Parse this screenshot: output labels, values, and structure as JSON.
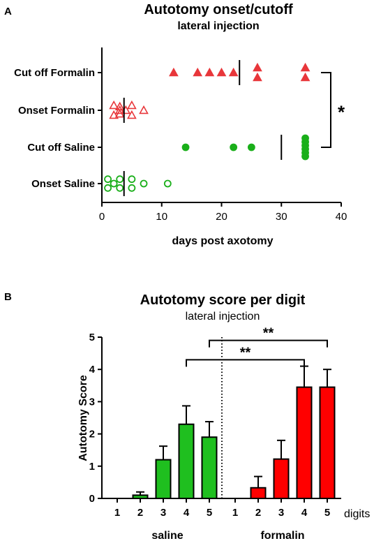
{
  "colors": {
    "red": "#e8363a",
    "green": "#1aaf1a",
    "red_bar": "#ff0000",
    "green_bar": "#1fbf1f",
    "axis": "#000000"
  },
  "chart_data": [
    {
      "type": "scatter",
      "panel_label": "A",
      "title": "Autotomy onset/cutoff",
      "subtitle": "lateral injection",
      "xlabel": "days post axotomy",
      "xlim": [
        0,
        40
      ],
      "xticks": [
        "0",
        "10",
        "20",
        "30",
        "40"
      ],
      "categories": [
        "Cut off Formalin",
        "Onset Formalin",
        "Cut off Saline",
        "Onset Saline"
      ],
      "series": [
        {
          "category": "Cut off Formalin",
          "marker": "filled-triangle",
          "color": "red",
          "values": [
            12,
            16,
            18,
            20,
            22,
            26,
            26,
            34,
            34
          ],
          "median": 23
        },
        {
          "category": "Onset Formalin",
          "marker": "open-triangle",
          "color": "red",
          "values": [
            2,
            2,
            3,
            3,
            3,
            4,
            5,
            5,
            7
          ],
          "median": 3.7
        },
        {
          "category": "Cut off Saline",
          "marker": "filled-circle",
          "color": "green",
          "values": [
            14,
            22,
            25,
            34,
            34,
            34,
            34,
            34,
            34
          ],
          "median": 30
        },
        {
          "category": "Onset Saline",
          "marker": "open-circle",
          "color": "green",
          "values": [
            1,
            1,
            2,
            3,
            3,
            5,
            5,
            7,
            11
          ],
          "median": 3.7
        }
      ],
      "significance": {
        "between": [
          "Cut off Formalin",
          "Cut off Saline"
        ],
        "label": "*"
      }
    },
    {
      "type": "bar",
      "panel_label": "B",
      "title": "Autotomy score per digit",
      "subtitle": "lateral injection",
      "ylabel": "Autotomy Score",
      "xlabel": "digits",
      "ylim": [
        0,
        5
      ],
      "yticks": [
        "0",
        "1",
        "2",
        "3",
        "4",
        "5"
      ],
      "groups": [
        {
          "name": "saline",
          "color": "green_bar",
          "categories": [
            "1",
            "2",
            "3",
            "4",
            "5"
          ],
          "values": [
            0,
            0.1,
            1.2,
            2.3,
            1.9
          ],
          "errors": [
            0,
            0.1,
            0.42,
            0.57,
            0.48
          ]
        },
        {
          "name": "formalin",
          "color": "red_bar",
          "categories": [
            "1",
            "2",
            "3",
            "4",
            "5"
          ],
          "values": [
            0,
            0.33,
            1.22,
            3.45,
            3.45
          ],
          "errors": [
            0,
            0.35,
            0.58,
            0.65,
            0.55
          ]
        }
      ],
      "significance": [
        {
          "from": "saline 4",
          "to": "formalin 4",
          "label": "**"
        },
        {
          "from": "saline 5",
          "to": "formalin 5",
          "label": "**"
        }
      ]
    }
  ]
}
